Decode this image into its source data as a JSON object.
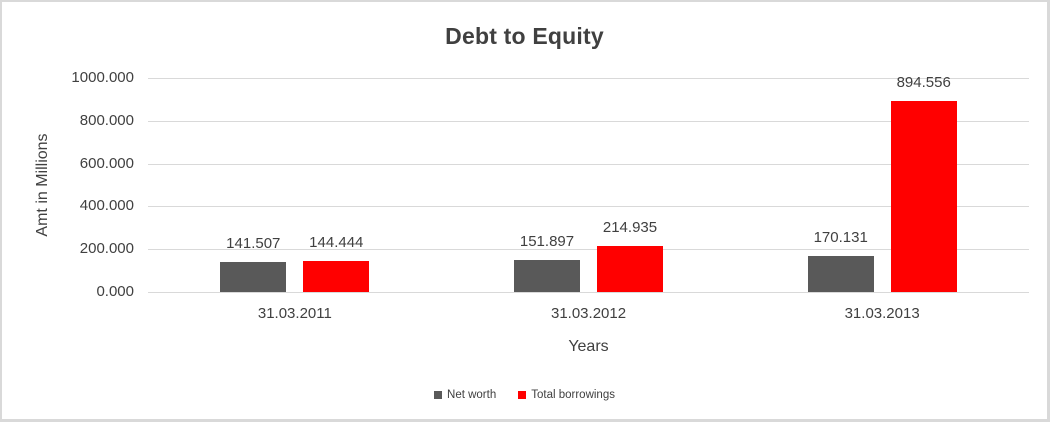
{
  "chart_data": {
    "type": "bar",
    "title": "Debt to Equity",
    "xlabel": "Years",
    "ylabel": "Amt in Millions",
    "categories": [
      "31.03.2011",
      "31.03.2012",
      "31.03.2013"
    ],
    "series": [
      {
        "name": "Net worth",
        "color": "#595959",
        "values": [
          141.507,
          151.897,
          170.131
        ],
        "labels": [
          "141.507",
          "151.897",
          "170.131"
        ]
      },
      {
        "name": "Total borrowings",
        "color": "#ff0000",
        "values": [
          144.444,
          214.935,
          894.556
        ],
        "labels": [
          "144.444",
          "214.935",
          "894.556"
        ]
      }
    ],
    "ylim": [
      0,
      1000
    ],
    "ytick_step": 200,
    "ytick_labels": [
      "1000.000",
      "800.000",
      "600.000",
      "400.000",
      "200.000",
      "0.000"
    ],
    "grid": true,
    "legend_position": "bottom",
    "colors": {
      "text": "#404040",
      "gridline": "#d9d9d9",
      "frame_border": "#d9d9d9",
      "background": "#ffffff"
    }
  }
}
